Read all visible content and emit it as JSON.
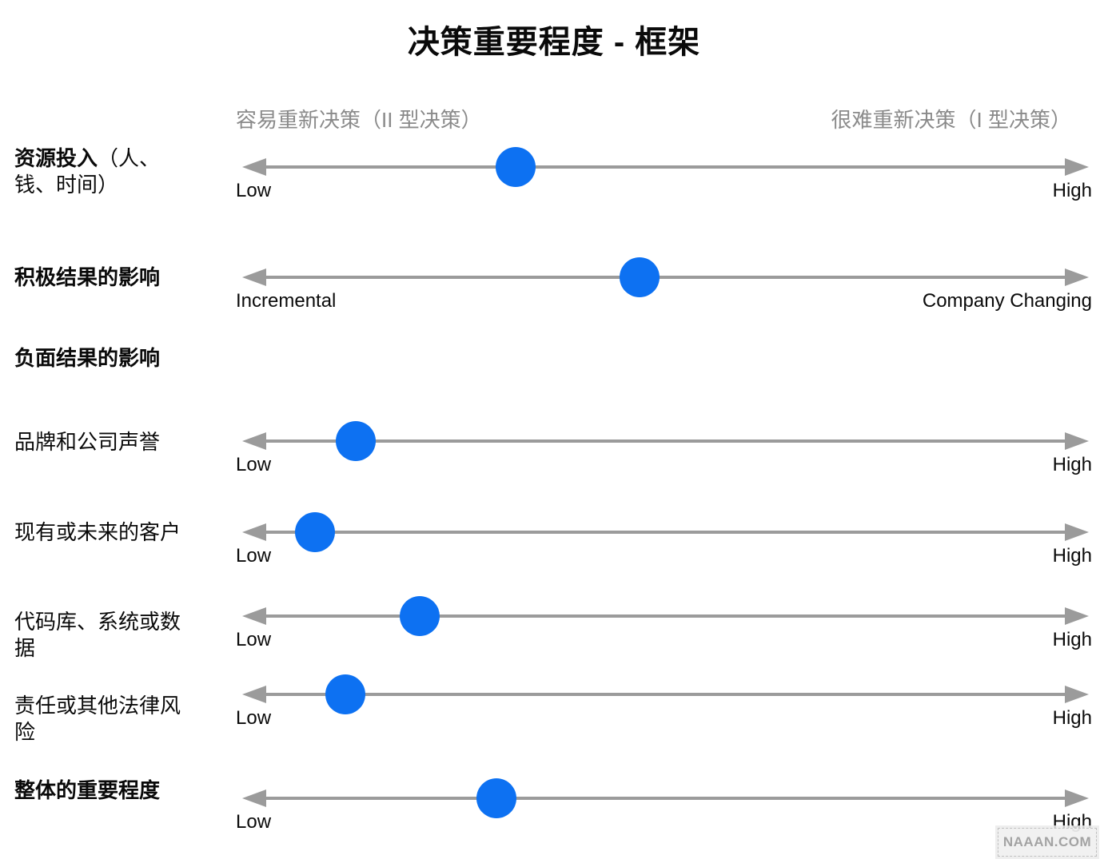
{
  "title": "决策重要程度 - 框架",
  "axis": {
    "left": "容易重新决策（II 型决策）",
    "right": "很难重新决策（I 型决策）"
  },
  "colors": {
    "dot": "#0d71f2",
    "line": "#9b9b9b",
    "axis_text": "#8a8a8a"
  },
  "watermark": "NAAAN.COM",
  "rows": [
    {
      "key": "resource-investment",
      "label_bold": "资源投入",
      "label_rest": "（人、钱、时间）",
      "low": "Low",
      "high": "High",
      "dot_percent": 32.3
    },
    {
      "key": "positive-outcome-impact",
      "label_bold": "积极结果的影响",
      "label_rest": "",
      "low": "Incremental",
      "high": "Company Changing",
      "dot_percent": 46.9
    },
    {
      "key": "negative-outcome-impact",
      "label_bold": "负面结果的影响",
      "label_rest": ""
    },
    {
      "key": "brand-company-reputation",
      "label_bold": "",
      "label_rest": "品牌和公司声誉",
      "low": "Low",
      "high": "High",
      "dot_percent": 13.4
    },
    {
      "key": "current-future-customers",
      "label_bold": "",
      "label_rest": "现有或未来的客户",
      "low": "Low",
      "high": "High",
      "dot_percent": 8.6
    },
    {
      "key": "codebase-systems-data",
      "label_bold": "",
      "label_rest": "代码库、系统或数据",
      "low": "Low",
      "high": "High",
      "dot_percent": 21.0
    },
    {
      "key": "liability-legal-risk",
      "label_bold": "",
      "label_rest": "责任或其他法律风险",
      "low": "Low",
      "high": "High",
      "dot_percent": 12.2
    },
    {
      "key": "overall-importance",
      "label_bold": "整体的重要程度",
      "label_rest": "",
      "low": "Low",
      "high": "High",
      "dot_percent": 30.0
    }
  ]
}
